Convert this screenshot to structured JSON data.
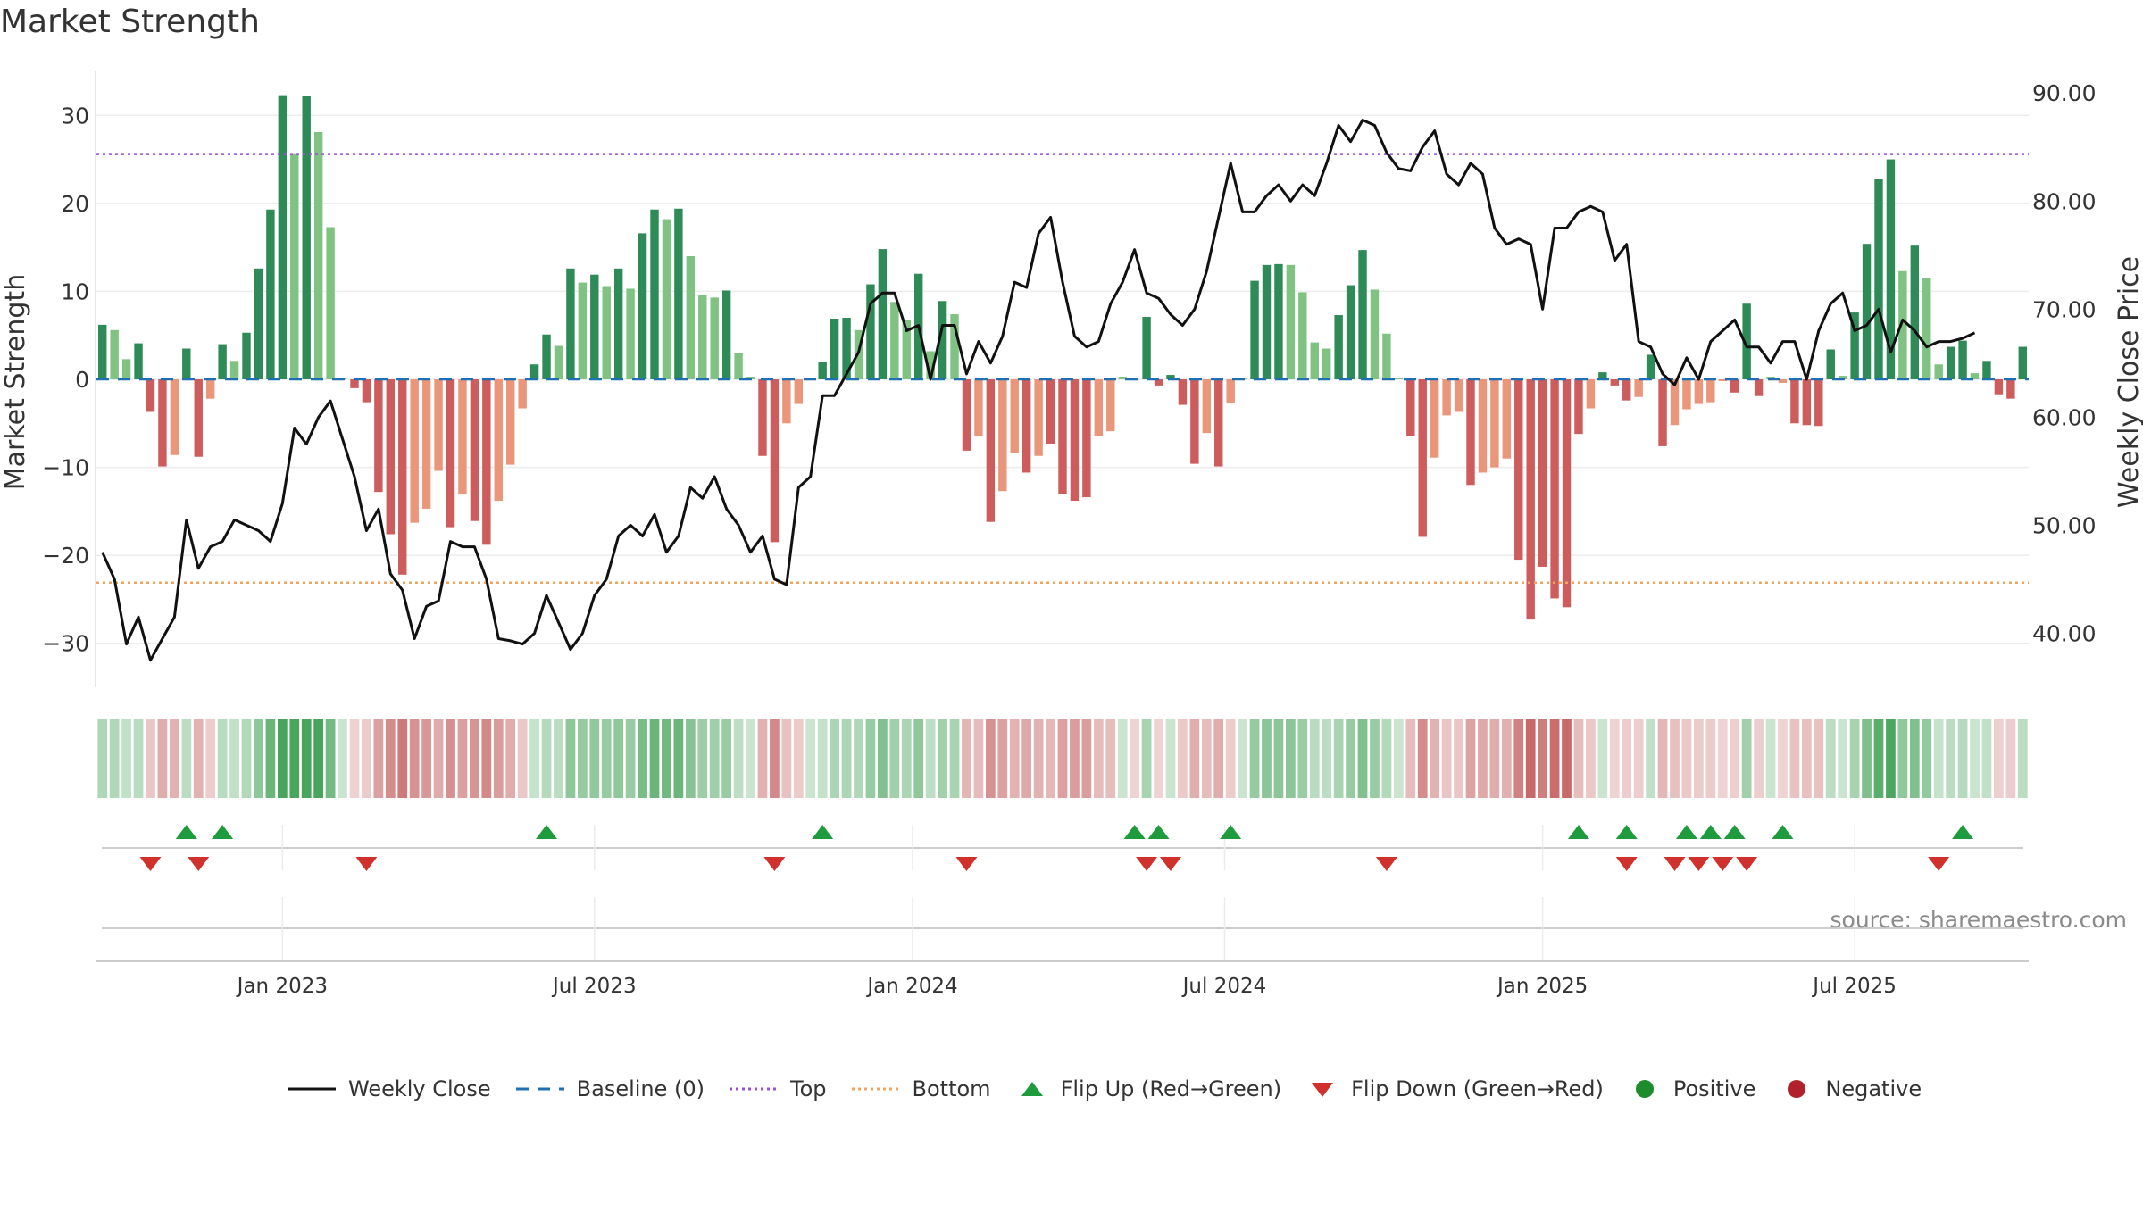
{
  "title": "Market Strength",
  "source": "source: sharemaestro.com",
  "legend": {
    "weekly_close": "Weekly Close",
    "baseline": "Baseline (0)",
    "top": "Top",
    "bottom": "Bottom",
    "flip_up": "Flip Up (Red→Green)",
    "flip_down": "Flip Down (Green→Red)",
    "positive": "Positive",
    "negative": "Negative"
  },
  "colors": {
    "strong_pos": "#2e8b57",
    "weak_pos": "#7fc282",
    "strong_neg": "#cd5c5c",
    "weak_neg": "#e9967a",
    "top_line": "#9a4fd6",
    "bottom_line": "#f0a55e",
    "baseline": "#1f6fb5",
    "close_line": "#111111",
    "flip_up": "#1e9b3c",
    "flip_down": "#d0312d",
    "positive_dot": "#1e8c2c",
    "negative_dot": "#b0212b"
  },
  "chart_data": {
    "type": "bar",
    "title": "Market Strength",
    "ylabel": "Market Strength",
    "y2label": "Weekly Close Price",
    "ylim": [
      -35,
      35
    ],
    "y2lim": [
      35,
      92
    ],
    "yticks": [
      30,
      20,
      10,
      0,
      -10,
      -20,
      -30
    ],
    "ytick_labels": [
      "30",
      "20",
      "10",
      "0",
      "−10",
      "−20",
      "−30"
    ],
    "y2ticks": [
      90,
      80,
      70,
      60,
      50,
      40
    ],
    "y2tick_labels": [
      "90.00",
      "80.00",
      "70.00",
      "60.00",
      "50.00",
      "40.00"
    ],
    "top_level": 25.6,
    "bottom_level": -23.1,
    "x_ticks": [
      {
        "label": "Jan 2023",
        "week": 15
      },
      {
        "label": "Jul 2023",
        "week": 41
      },
      {
        "label": "Jan 2024",
        "week": 67.5
      },
      {
        "label": "Jul 2024",
        "week": 93.5
      },
      {
        "label": "Jan 2025",
        "week": 120
      },
      {
        "label": "Jul 2025",
        "week": 146
      }
    ],
    "strength": [
      6.2,
      5.6,
      2.3,
      4.1,
      -3.7,
      -9.9,
      -8.6,
      3.5,
      -8.8,
      -2.2,
      4.0,
      2.1,
      5.3,
      12.6,
      19.3,
      32.3,
      25.7,
      32.2,
      28.1,
      17.3,
      0.2,
      -1.0,
      -2.6,
      -12.8,
      -17.6,
      -22.2,
      -16.3,
      -14.7,
      -10.4,
      -16.8,
      -13.1,
      -16.1,
      -18.8,
      -13.8,
      -9.7,
      -3.3,
      1.7,
      5.1,
      3.8,
      12.6,
      11.0,
      11.9,
      10.6,
      12.6,
      10.3,
      16.6,
      19.3,
      18.2,
      19.4,
      14.0,
      9.6,
      9.3,
      10.1,
      3.0,
      0.3,
      -8.7,
      -18.5,
      -5.0,
      -2.8,
      0.1,
      2.0,
      6.9,
      7.0,
      5.6,
      10.8,
      14.8,
      8.8,
      6.8,
      12.0,
      3.2,
      8.9,
      7.4,
      -8.1,
      -6.5,
      -16.2,
      -12.7,
      -8.4,
      -10.6,
      -8.7,
      -7.3,
      -13.0,
      -13.8,
      -13.4,
      -6.4,
      -5.9,
      0.3,
      -0.1,
      7.1,
      -0.7,
      0.5,
      -2.9,
      -9.6,
      -6.1,
      -9.9,
      -2.7,
      0.2,
      11.2,
      13.0,
      13.1,
      13.0,
      9.9,
      4.2,
      3.5,
      7.3,
      10.7,
      14.7,
      10.2,
      5.2,
      0.2,
      -6.4,
      -17.9,
      -8.9,
      -4.1,
      -3.7,
      -12.0,
      -10.6,
      -10.0,
      -9.0,
      -20.5,
      -27.3,
      -21.3,
      -24.9,
      -25.9,
      -6.2,
      -3.3,
      0.8,
      -0.7,
      -2.4,
      -2.0,
      2.8,
      -7.6,
      -5.2,
      -3.4,
      -2.8,
      -2.6,
      -0.2,
      -1.5,
      8.6,
      -1.9,
      0.3,
      -0.4,
      -5.0,
      -5.2,
      -5.3,
      3.4,
      0.4,
      7.6,
      15.4,
      22.8,
      25.0,
      12.3,
      15.2,
      11.5,
      1.7,
      3.7,
      4.4,
      0.7,
      2.1,
      -1.7,
      -2.2,
      3.7
    ],
    "intensity": [
      "strong_pos",
      "weak_pos",
      "weak_pos",
      "strong_pos",
      "strong_neg",
      "strong_neg",
      "weak_neg",
      "strong_pos",
      "strong_neg",
      "weak_neg",
      "strong_pos",
      "weak_pos",
      "strong_pos",
      "strong_pos",
      "strong_pos",
      "strong_pos",
      "weak_pos",
      "strong_pos",
      "weak_pos",
      "weak_pos",
      "weak_pos",
      "strong_neg",
      "strong_neg",
      "strong_neg",
      "strong_neg",
      "strong_neg",
      "weak_neg",
      "weak_neg",
      "weak_neg",
      "strong_neg",
      "weak_neg",
      "strong_neg",
      "strong_neg",
      "weak_neg",
      "weak_neg",
      "weak_neg",
      "strong_pos",
      "strong_pos",
      "weak_pos",
      "strong_pos",
      "weak_pos",
      "strong_pos",
      "weak_pos",
      "strong_pos",
      "weak_pos",
      "strong_pos",
      "strong_pos",
      "weak_pos",
      "strong_pos",
      "weak_pos",
      "weak_pos",
      "weak_pos",
      "strong_pos",
      "weak_pos",
      "weak_pos",
      "strong_neg",
      "strong_neg",
      "weak_neg",
      "weak_neg",
      "weak_pos",
      "strong_pos",
      "strong_pos",
      "strong_pos",
      "weak_pos",
      "strong_pos",
      "strong_pos",
      "weak_pos",
      "weak_pos",
      "strong_pos",
      "weak_pos",
      "strong_pos",
      "weak_pos",
      "strong_neg",
      "weak_neg",
      "strong_neg",
      "weak_neg",
      "weak_neg",
      "strong_neg",
      "weak_neg",
      "strong_neg",
      "strong_neg",
      "strong_neg",
      "strong_neg",
      "weak_neg",
      "weak_neg",
      "weak_pos",
      "weak_neg",
      "strong_pos",
      "strong_neg",
      "strong_pos",
      "strong_neg",
      "strong_neg",
      "weak_neg",
      "strong_neg",
      "weak_neg",
      "weak_pos",
      "strong_pos",
      "strong_pos",
      "strong_pos",
      "weak_pos",
      "weak_pos",
      "weak_pos",
      "weak_pos",
      "strong_pos",
      "strong_pos",
      "strong_pos",
      "weak_pos",
      "weak_pos",
      "weak_pos",
      "strong_neg",
      "strong_neg",
      "weak_neg",
      "weak_neg",
      "weak_neg",
      "strong_neg",
      "weak_neg",
      "weak_neg",
      "weak_neg",
      "strong_neg",
      "strong_neg",
      "strong_neg",
      "strong_neg",
      "strong_neg",
      "strong_neg",
      "weak_neg",
      "strong_pos",
      "strong_neg",
      "strong_neg",
      "weak_neg",
      "strong_pos",
      "strong_neg",
      "weak_neg",
      "weak_neg",
      "weak_neg",
      "weak_neg",
      "weak_neg",
      "strong_neg",
      "strong_pos",
      "strong_neg",
      "weak_pos",
      "weak_neg",
      "strong_neg",
      "strong_neg",
      "strong_neg",
      "strong_pos",
      "weak_pos",
      "strong_pos",
      "strong_pos",
      "strong_pos",
      "strong_pos",
      "weak_pos",
      "strong_pos",
      "weak_pos",
      "weak_pos",
      "strong_pos",
      "strong_pos",
      "weak_pos",
      "strong_pos",
      "strong_neg",
      "strong_neg",
      "strong_pos"
    ],
    "close": [
      47.5,
      45.0,
      39.0,
      41.5,
      37.5,
      39.5,
      41.5,
      50.5,
      46.0,
      48.0,
      48.5,
      50.5,
      50.0,
      49.5,
      48.5,
      52.0,
      59.0,
      57.5,
      60.0,
      61.5,
      58.0,
      54.5,
      49.5,
      51.5,
      45.5,
      44.0,
      39.5,
      42.5,
      43.0,
      48.5,
      48.0,
      48.0,
      45.0,
      39.5,
      39.3,
      39.0,
      40.0,
      43.5,
      41.0,
      38.5,
      40.0,
      43.5,
      45.0,
      49.0,
      50.0,
      49.0,
      51.0,
      47.5,
      49.0,
      53.5,
      52.5,
      54.5,
      51.5,
      50.0,
      47.5,
      49.0,
      45.0,
      44.5,
      53.5,
      54.5,
      62.0,
      62.0,
      64.0,
      66.0,
      70.5,
      71.5,
      71.5,
      68.0,
      68.5,
      63.5,
      68.5,
      68.5,
      64.0,
      67.0,
      65.0,
      67.5,
      72.5,
      72.0,
      77.0,
      78.5,
      72.5,
      67.5,
      66.5,
      67.0,
      70.5,
      72.5,
      75.5,
      71.5,
      71.0,
      69.5,
      68.5,
      70.0,
      73.5,
      78.5,
      83.5,
      79.0,
      79.0,
      80.5,
      81.5,
      80.0,
      81.5,
      80.5,
      83.5,
      87.0,
      85.5,
      87.5,
      87.0,
      84.5,
      83.0,
      82.8,
      85.0,
      86.5,
      82.5,
      81.5,
      83.5,
      82.5,
      77.5,
      76.0,
      76.5,
      76.0,
      70.0,
      77.5,
      77.5,
      79.0,
      79.5,
      79.0,
      74.5,
      76.0,
      67.0,
      66.5,
      64.0,
      63.0,
      65.5,
      63.5,
      67.0,
      68.0,
      69.0,
      66.5,
      66.5,
      65.0,
      67.0,
      67.0,
      63.5,
      68.0,
      70.5,
      71.5,
      68.0,
      68.5,
      70.0,
      66.0,
      69.0,
      68.0,
      66.5,
      67.0,
      67.0,
      67.3,
      67.8
    ],
    "flip_up_weeks": [
      7,
      10,
      37,
      60,
      86,
      88,
      94,
      123,
      127,
      132,
      134,
      136,
      140,
      155
    ],
    "flip_down_weeks": [
      4,
      8,
      22,
      56,
      72,
      87,
      89,
      107,
      127,
      131,
      133,
      135,
      137,
      153
    ]
  }
}
